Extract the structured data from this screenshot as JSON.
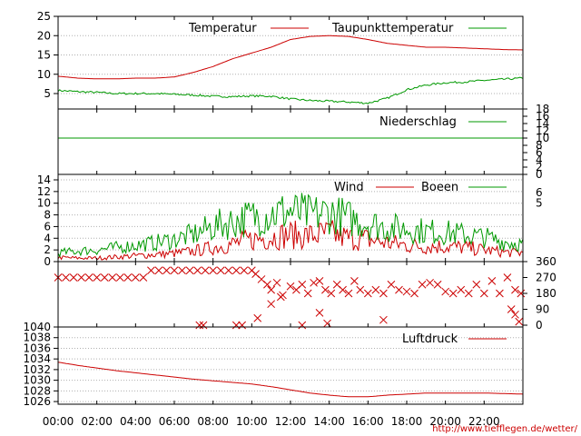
{
  "credit": "http://www.tiefflegen.de/wetter/",
  "chart_data": [
    {
      "type": "line",
      "panel": "temperature",
      "ylim": [
        1,
        25
      ],
      "yticks": [
        5,
        10,
        15,
        20,
        25
      ],
      "grid": true,
      "legend_position": "top",
      "series": [
        {
          "name": "Temperatur",
          "color": "#cc0000",
          "x": [
            0,
            1,
            2,
            3,
            4,
            5,
            6,
            7,
            8,
            9,
            10,
            11,
            12,
            13,
            14,
            15,
            16,
            17,
            18,
            19,
            20,
            21,
            22,
            23,
            24
          ],
          "values": [
            9.5,
            9.0,
            8.8,
            8.8,
            9.0,
            9.0,
            9.3,
            10.5,
            12.0,
            14.0,
            15.5,
            17.0,
            19.0,
            19.8,
            20.0,
            19.8,
            19.0,
            18.0,
            17.5,
            17.0,
            17.0,
            16.8,
            16.6,
            16.4,
            16.3
          ]
        },
        {
          "name": "Taupunkttemperatur",
          "color": "#009900",
          "x": [
            0,
            1,
            2,
            3,
            4,
            5,
            6,
            7,
            8,
            9,
            10,
            11,
            12,
            13,
            14,
            15,
            16,
            17,
            18,
            19,
            20,
            21,
            22,
            23,
            24
          ],
          "values": [
            5.8,
            5.5,
            5.3,
            5.0,
            5.0,
            5.0,
            4.8,
            4.6,
            4.3,
            4.2,
            4.4,
            4.3,
            3.6,
            3.2,
            3.0,
            2.8,
            2.5,
            3.8,
            6.0,
            7.2,
            7.8,
            8.0,
            8.4,
            8.7,
            9.0
          ]
        }
      ]
    },
    {
      "type": "line",
      "panel": "precipitation",
      "ylim": [
        0,
        18
      ],
      "yticks": [
        0,
        2,
        4,
        6,
        8,
        10,
        12,
        14,
        16,
        18
      ],
      "axis_side": "right",
      "legend_position": "top-right",
      "series": [
        {
          "name": "Niederschlag",
          "color": "#009900",
          "x": [
            0,
            24
          ],
          "values": [
            10,
            10
          ]
        }
      ]
    },
    {
      "type": "line",
      "panel": "wind",
      "ylim": [
        0,
        14
      ],
      "yticks": [
        0,
        2,
        4,
        6,
        8,
        10,
        12,
        14
      ],
      "right_axis_labels": [
        "6",
        "5"
      ],
      "grid": true,
      "legend_position": "top-right",
      "series": [
        {
          "name": "Wind",
          "color": "#cc0000",
          "x": [
            0,
            1,
            2,
            3,
            4,
            5,
            6,
            7,
            8,
            9,
            10,
            11,
            12,
            13,
            14,
            15,
            16,
            17,
            18,
            19,
            20,
            21,
            22,
            23,
            24
          ],
          "values": [
            0.7,
            0.6,
            0.6,
            0.8,
            1.0,
            1.2,
            1.4,
            1.8,
            2.4,
            3.0,
            3.8,
            4.2,
            4.6,
            4.4,
            4.8,
            4.0,
            3.8,
            3.2,
            2.8,
            2.6,
            2.6,
            2.4,
            2.0,
            1.6,
            1.5
          ]
        },
        {
          "name": "Boeen",
          "color": "#009900",
          "x": [
            0,
            1,
            2,
            3,
            4,
            5,
            6,
            7,
            8,
            9,
            10,
            11,
            12,
            13,
            14,
            15,
            16,
            17,
            18,
            19,
            20,
            21,
            22,
            23,
            24
          ],
          "values": [
            1.5,
            1.8,
            2.0,
            2.4,
            2.8,
            3.2,
            3.8,
            4.6,
            6.0,
            6.8,
            7.6,
            8.2,
            8.6,
            8.0,
            8.4,
            7.4,
            6.6,
            5.8,
            5.6,
            5.2,
            5.0,
            4.6,
            4.2,
            3.4,
            3.0
          ]
        }
      ]
    },
    {
      "type": "scatter",
      "panel": "wind-direction",
      "ylim": [
        0,
        360
      ],
      "yticks": [
        0,
        90,
        180,
        270,
        360
      ],
      "axis_side": "right",
      "marker": "x",
      "series": [
        {
          "color": "#cc0000",
          "x": [
            0.0,
            0.4,
            0.8,
            1.2,
            1.6,
            2.0,
            2.4,
            2.8,
            3.2,
            3.6,
            4.0,
            4.4,
            4.8,
            5.2,
            5.6,
            6.0,
            6.4,
            6.8,
            7.2,
            7.6,
            8.0,
            8.4,
            8.8,
            9.2,
            9.6,
            10.0,
            10.2,
            10.5,
            10.8,
            11.0,
            11.3,
            11.6,
            12.0,
            12.3,
            12.6,
            12.9,
            13.2,
            13.5,
            13.8,
            14.1,
            14.4,
            14.7,
            15.0,
            15.3,
            15.6,
            16.0,
            16.4,
            16.8,
            17.2,
            17.6,
            18.0,
            18.4,
            18.8,
            19.2,
            19.6,
            20.0,
            20.4,
            20.8,
            21.2,
            21.6,
            22.0,
            22.4,
            22.8,
            23.2,
            23.6,
            23.9,
            7.3,
            7.5,
            9.2,
            9.5,
            10.3,
            11.0,
            12.6,
            13.9,
            16.8,
            23.4,
            23.6,
            23.8,
            13.5,
            11.5
          ],
          "values": [
            270,
            270,
            270,
            270,
            270,
            270,
            270,
            270,
            270,
            270,
            270,
            270,
            310,
            310,
            310,
            310,
            310,
            310,
            310,
            310,
            310,
            310,
            310,
            310,
            310,
            310,
            290,
            260,
            230,
            200,
            240,
            170,
            220,
            200,
            230,
            180,
            240,
            250,
            200,
            180,
            230,
            200,
            180,
            250,
            200,
            180,
            200,
            180,
            230,
            200,
            190,
            180,
            230,
            240,
            230,
            190,
            180,
            200,
            180,
            230,
            180,
            250,
            180,
            270,
            200,
            180,
            0,
            0,
            0,
            0,
            40,
            120,
            0,
            10,
            30,
            90,
            60,
            20,
            70,
            160
          ]
        }
      ]
    },
    {
      "type": "line",
      "panel": "pressure",
      "ylim": [
        1025.5,
        1040
      ],
      "yticks": [
        1026,
        1028,
        1030,
        1032,
        1034,
        1036,
        1038,
        1040
      ],
      "grid": true,
      "legend_position": "top-right",
      "series": [
        {
          "name": "Luftdruck",
          "color": "#cc0000",
          "x": [
            0,
            1,
            2,
            3,
            4,
            5,
            6,
            7,
            8,
            9,
            10,
            11,
            12,
            13,
            14,
            15,
            16,
            17,
            18,
            19,
            20,
            21,
            22,
            23,
            24
          ],
          "values": [
            1033.4,
            1032.8,
            1032.3,
            1031.8,
            1031.4,
            1031.0,
            1030.6,
            1030.2,
            1029.9,
            1029.6,
            1029.3,
            1028.8,
            1028.2,
            1027.6,
            1027.2,
            1026.9,
            1026.9,
            1027.2,
            1027.4,
            1027.6,
            1027.6,
            1027.6,
            1027.6,
            1027.5,
            1027.4
          ]
        }
      ]
    }
  ],
  "x_axis": {
    "range": [
      0,
      24
    ],
    "tick_labels": [
      "00:00",
      "02:00",
      "04:00",
      "06:00",
      "08:00",
      "10:00",
      "12:00",
      "14:00",
      "16:00",
      "18:00",
      "20:00",
      "22:00"
    ]
  }
}
